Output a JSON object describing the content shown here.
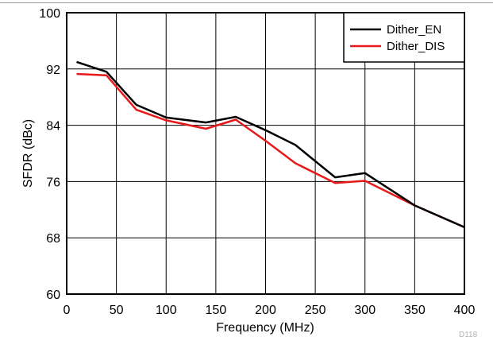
{
  "chart_data": {
    "type": "line",
    "xlabel": "Frequency (MHz)",
    "ylabel": "SFDR (dBc)",
    "xlim": [
      0,
      400
    ],
    "ylim": [
      60,
      100
    ],
    "x_ticks": [
      0,
      50,
      100,
      150,
      200,
      250,
      300,
      350,
      400
    ],
    "y_ticks": [
      60,
      68,
      76,
      84,
      92,
      100
    ],
    "grid": true,
    "legend_position": "top-right",
    "series": [
      {
        "name": "Dither_EN",
        "color": "#000000",
        "x": [
          10,
          40,
          70,
          100,
          140,
          170,
          200,
          230,
          270,
          300,
          350,
          400
        ],
        "y": [
          93.0,
          91.6,
          86.9,
          85.1,
          84.4,
          85.2,
          83.3,
          81.2,
          76.6,
          77.2,
          72.6,
          69.5
        ]
      },
      {
        "name": "Dither_DIS",
        "color": "#e8191b",
        "x": [
          10,
          40,
          70,
          100,
          140,
          170,
          200,
          230,
          270,
          300,
          350,
          400
        ],
        "y": [
          91.3,
          91.1,
          86.2,
          84.7,
          83.5,
          84.8,
          81.8,
          78.6,
          75.8,
          76.1,
          72.6,
          69.5
        ]
      }
    ],
    "figure_code": "D118"
  }
}
